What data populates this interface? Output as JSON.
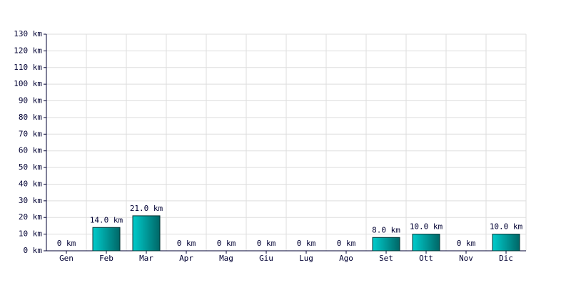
{
  "chart_data": {
    "type": "bar",
    "categories": [
      "Gen",
      "Feb",
      "Mar",
      "Apr",
      "Mag",
      "Giu",
      "Lug",
      "Ago",
      "Set",
      "Ott",
      "Nov",
      "Dic"
    ],
    "values": [
      0,
      14,
      21,
      0,
      0,
      0,
      0,
      0,
      8,
      10,
      0,
      10
    ],
    "value_labels": [
      "0 km",
      "14.0 km",
      "21.0 km",
      "0 km",
      "0 km",
      "0 km",
      "0 km",
      "0 km",
      "8.0 km",
      "10.0 km",
      "0 km",
      "10.0 km"
    ],
    "color": "#00cccc",
    "ylim": [
      0,
      130
    ],
    "yticks": [
      {
        "value": 0,
        "label": "0 km"
      },
      {
        "value": 10,
        "label": "10 km"
      },
      {
        "value": 20,
        "label": "20 km"
      },
      {
        "value": 30,
        "label": "30 km"
      },
      {
        "value": 40,
        "label": "40 km"
      },
      {
        "value": 50,
        "label": "50 km"
      },
      {
        "value": 60,
        "label": "60 km"
      },
      {
        "value": 70,
        "label": "70 km"
      },
      {
        "value": 80,
        "label": "80 km"
      },
      {
        "value": 90,
        "label": "90 km"
      },
      {
        "value": 100,
        "label": "100 km"
      },
      {
        "value": 110,
        "label": "110 km"
      },
      {
        "value": 120,
        "label": "120 km"
      },
      {
        "value": 130,
        "label": "130 km"
      }
    ],
    "grid": true
  }
}
